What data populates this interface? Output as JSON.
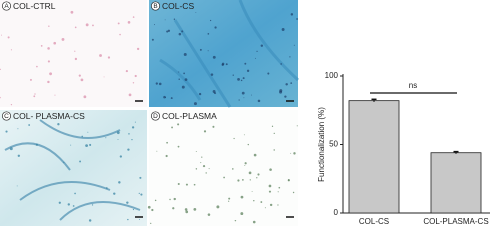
{
  "panels": [
    {
      "letter": "A",
      "label": "COL-CTRL"
    },
    {
      "letter": "B",
      "label": "COL-CS"
    },
    {
      "letter": "C",
      "label": "COL- PLASMA-CS"
    },
    {
      "letter": "D",
      "label": "COL-PLASMA"
    }
  ],
  "chart_data": {
    "type": "bar",
    "ylabel": "Functionalization (%)",
    "categories": [
      "COL-CS",
      "COL-PLASMA-CS"
    ],
    "values": [
      82,
      44
    ],
    "errors": [
      1,
      0.8
    ],
    "color": "#c8c8c8",
    "ylim": [
      0,
      100
    ],
    "yticks": [
      0,
      50,
      100
    ],
    "annotation": "ns"
  }
}
